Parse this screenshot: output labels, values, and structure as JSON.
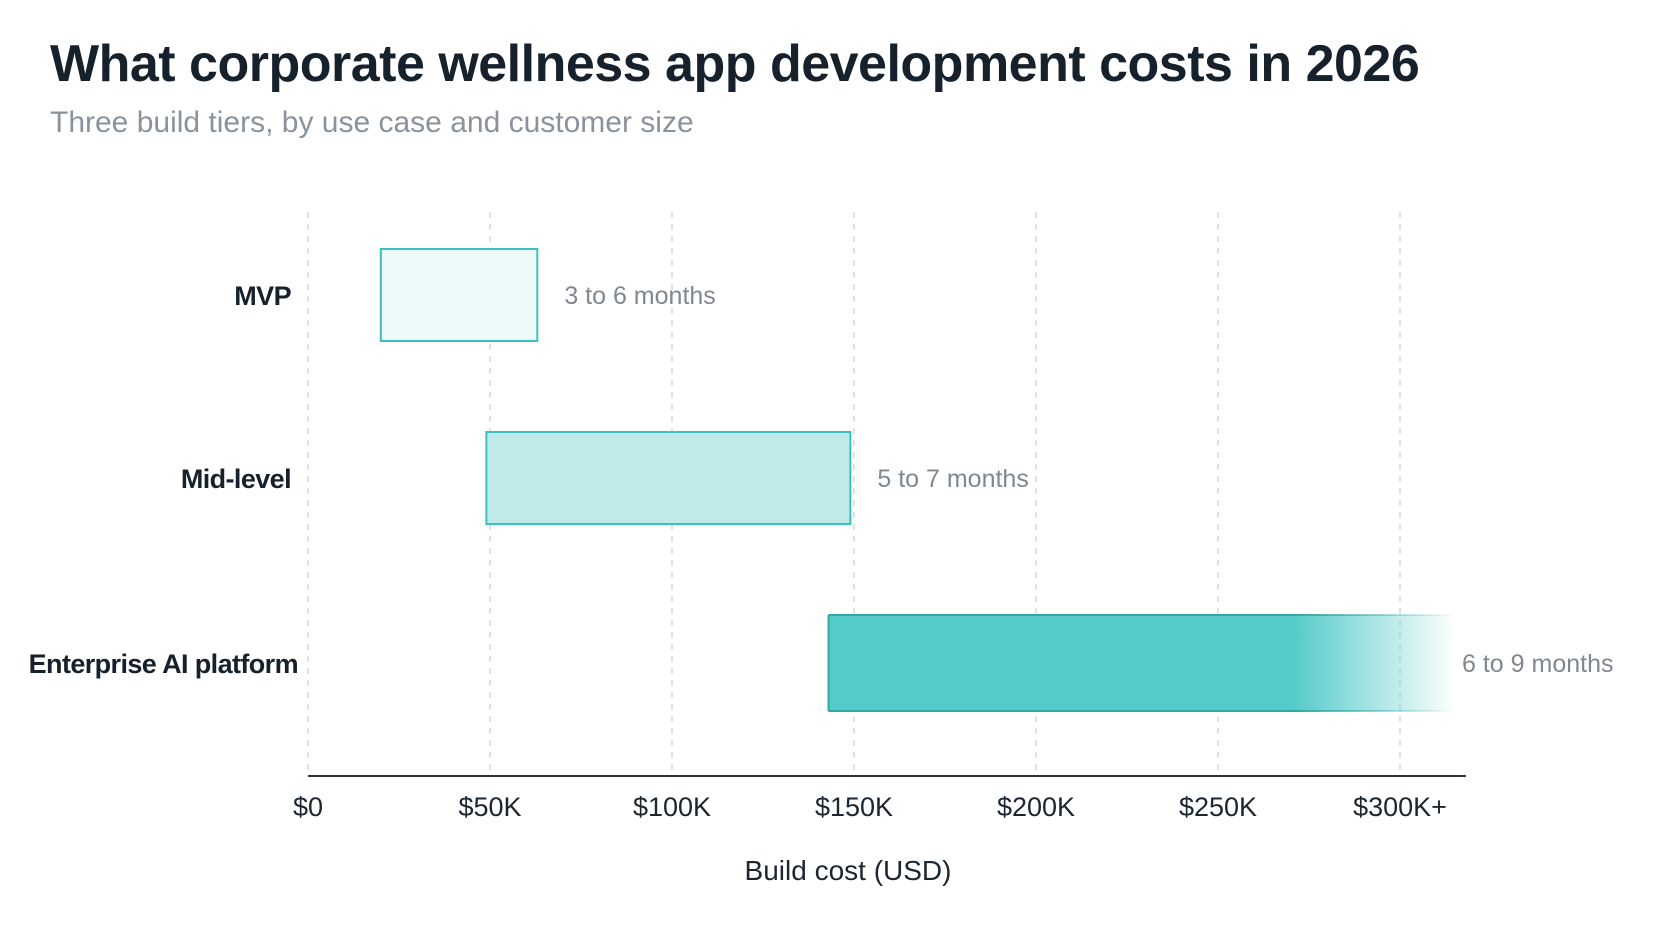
{
  "chart_data": {
    "type": "bar",
    "orientation": "horizontal",
    "style": "floating-range",
    "title": "What corporate wellness app development costs in 2026",
    "subtitle": "Three build tiers, by use case and customer size",
    "xlabel": "Build cost (USD)",
    "ylabel": "",
    "xlim": [
      0,
      310000
    ],
    "grid": true,
    "x_ticks": [
      {
        "value": 0,
        "label": "$0"
      },
      {
        "value": 50000,
        "label": "$50K"
      },
      {
        "value": 100000,
        "label": "$100K"
      },
      {
        "value": 150000,
        "label": "$150K"
      },
      {
        "value": 200000,
        "label": "$200K"
      },
      {
        "value": 250000,
        "label": "$250K"
      },
      {
        "value": 300000,
        "label": "$300K+"
      }
    ],
    "categories": [
      "MVP",
      "Mid-level",
      "Enterprise AI platform"
    ],
    "ranges": [
      {
        "category": "MVP",
        "min": 20000,
        "max": 63000,
        "annotation": "3 to 6 months",
        "fill": "#eefafa",
        "stroke": "#3cc0bf",
        "open_ended": false
      },
      {
        "category": "Mid-level",
        "min": 49000,
        "max": 149000,
        "annotation": "5 to 7 months",
        "fill": "#bfeaea",
        "stroke": "#3cc0bf",
        "open_ended": false
      },
      {
        "category": "Enterprise AI platform",
        "min": 143000,
        "max": 300000,
        "annotation": "6 to 9 months",
        "fill": "#55cbc9",
        "stroke": "#2fa9a8",
        "open_ended": true
      }
    ]
  }
}
